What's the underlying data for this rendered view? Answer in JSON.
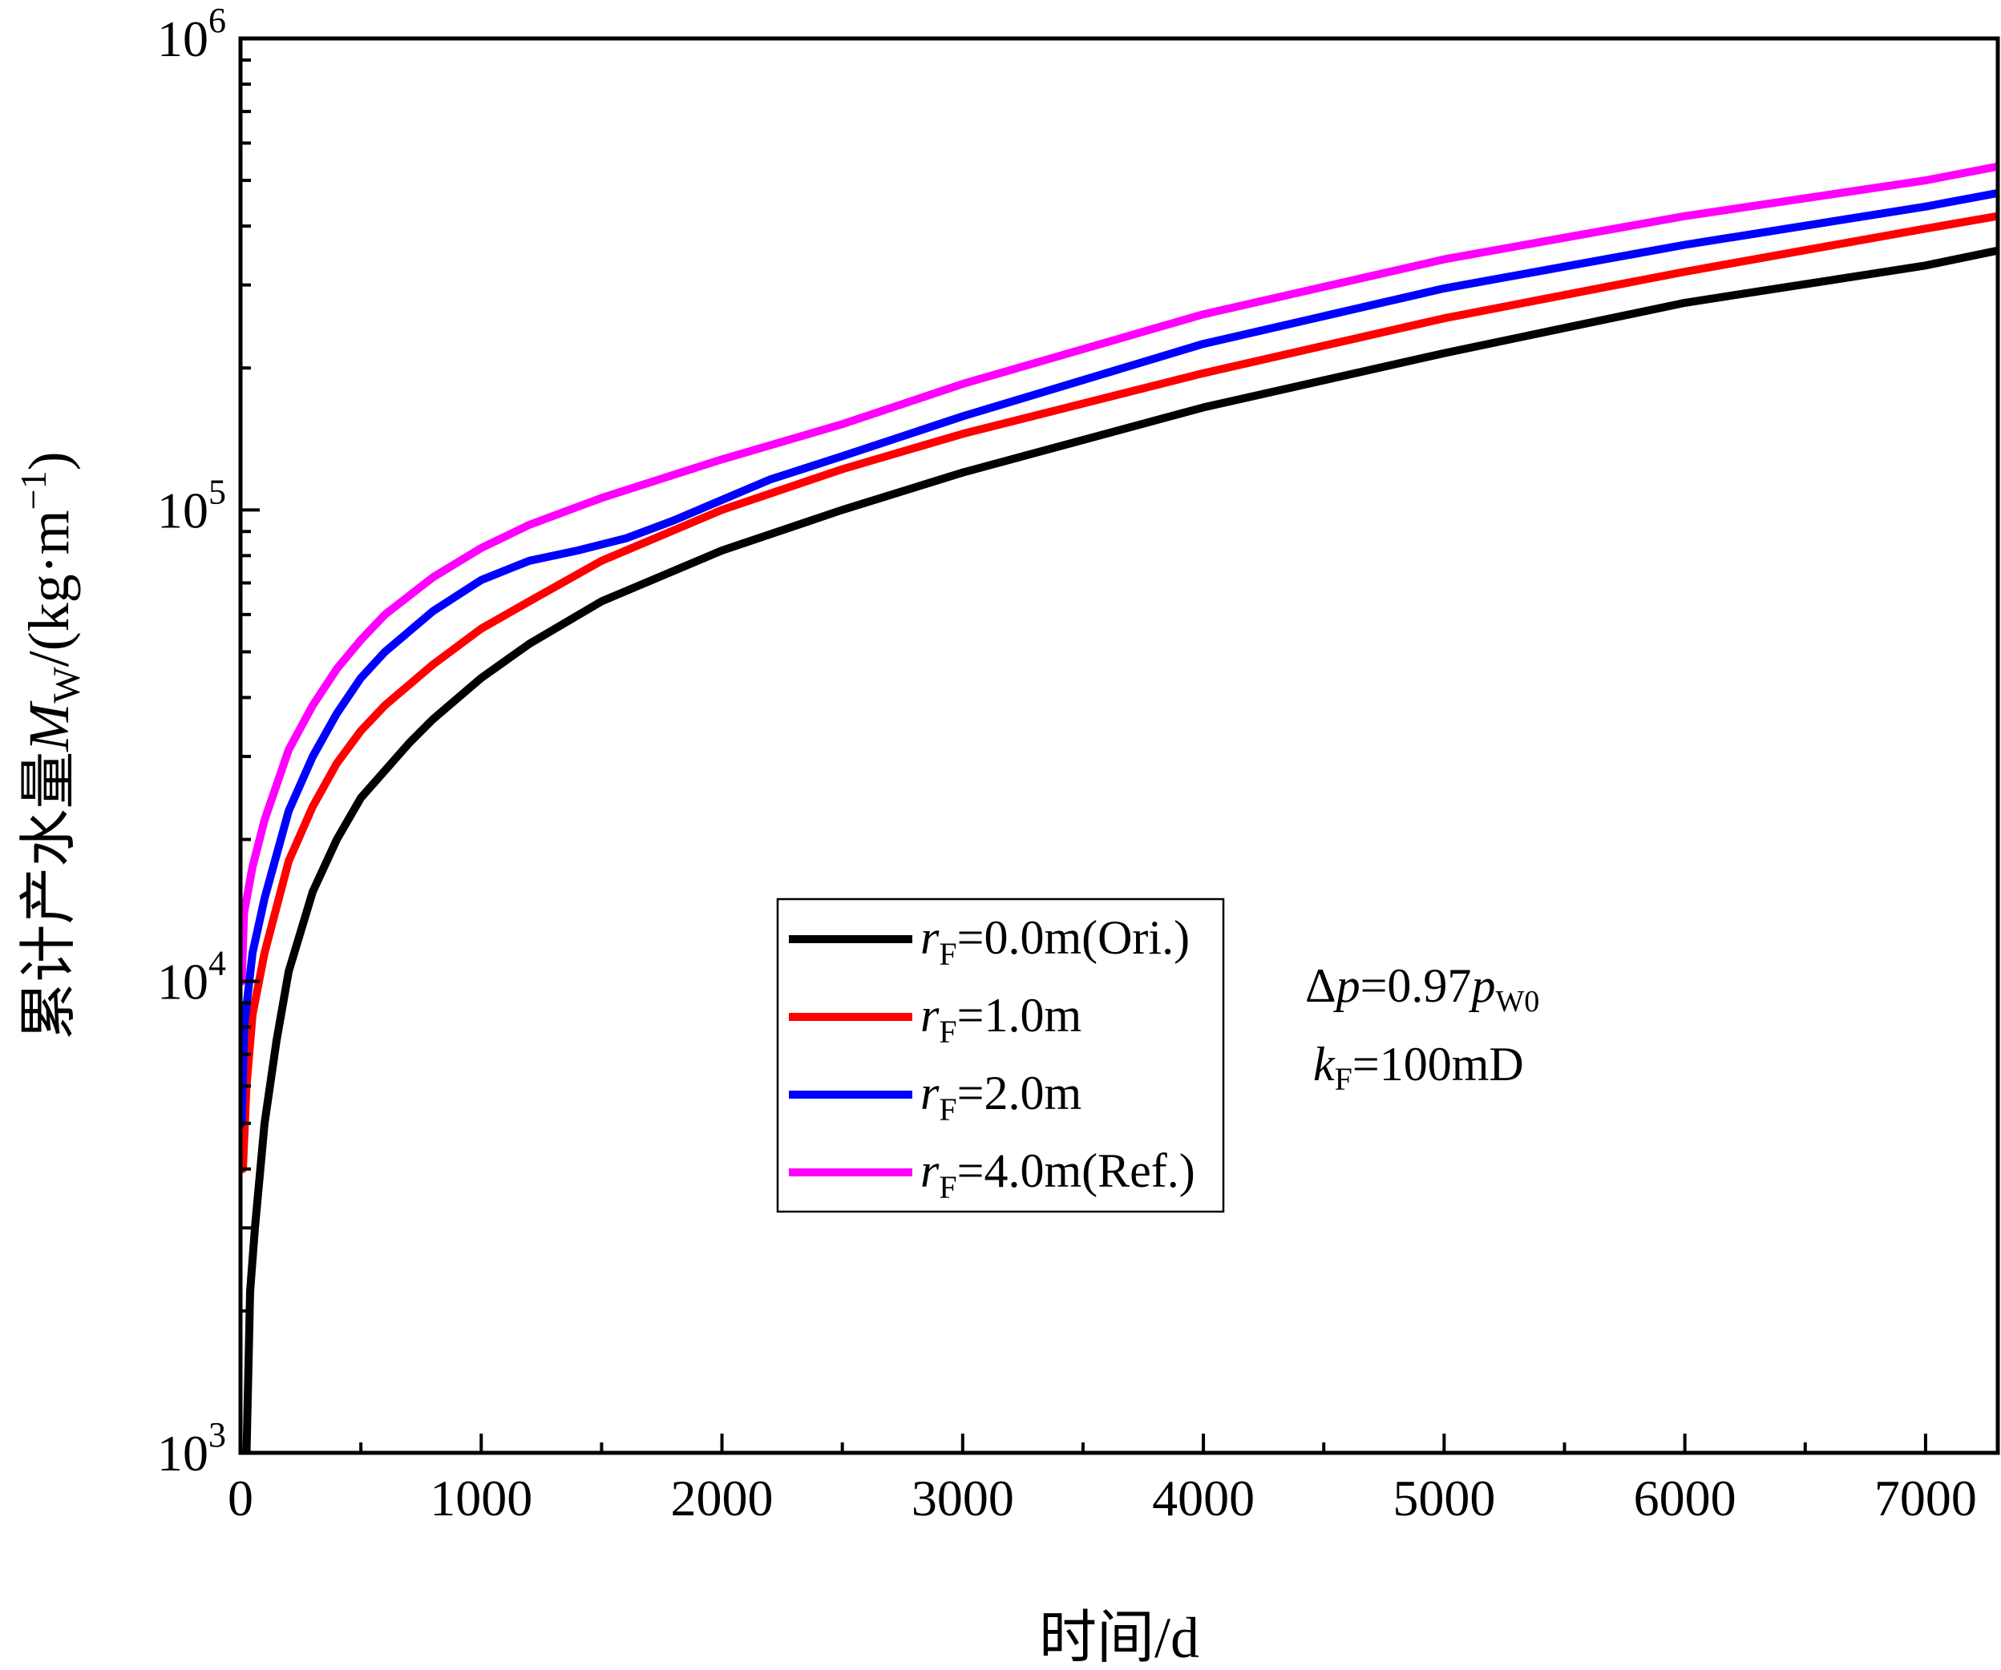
{
  "chart_data": {
    "type": "line",
    "xlabel": "时间/d",
    "ylabel": {
      "prefix": "累计产水量",
      "symbol": "M",
      "subscript": "W",
      "unit_open": "/(kg·m",
      "unit_exp": "−1",
      "unit_close": ")"
    },
    "x_axis": {
      "range": [
        0,
        7300
      ],
      "ticks": [
        0,
        1000,
        2000,
        3000,
        4000,
        5000,
        6000,
        7000
      ],
      "tick_labels": [
        "0",
        "1000",
        "2000",
        "3000",
        "4000",
        "5000",
        "6000",
        "7000"
      ]
    },
    "y_axis": {
      "scale": "log",
      "range": [
        1000,
        1000000
      ],
      "ticks": [
        1000,
        10000,
        100000,
        1000000
      ],
      "tick_labels": [
        {
          "base": "10",
          "exp": "3"
        },
        {
          "base": "10",
          "exp": "4"
        },
        {
          "base": "10",
          "exp": "5"
        },
        {
          "base": "10",
          "exp": "6"
        }
      ]
    },
    "legend": {
      "placement": "center",
      "entries": [
        {
          "sym": "r",
          "sub": "F",
          "rest": "=0.0m(Ori.)",
          "color": "#000000"
        },
        {
          "sym": "r",
          "sub": "F",
          "rest": "=1.0m",
          "color": "#ff0000"
        },
        {
          "sym": "r",
          "sub": "F",
          "rest": "=2.0m",
          "color": "#0000ff"
        },
        {
          "sym": "r",
          "sub": "F",
          "rest": "=4.0m(Ref.)",
          "color": "#ff00ff"
        }
      ]
    },
    "annotations": [
      {
        "pre": "Δ",
        "sym": "p",
        "mid": "=0.97",
        "sym2": "p",
        "sub2": "W0"
      },
      {
        "sym": "k",
        "sub": "F",
        "rest": "=100mD"
      }
    ],
    "series": [
      {
        "color": "#000000",
        "points": [
          [
            25,
            1000
          ],
          [
            40,
            2200
          ],
          [
            60,
            3000
          ],
          [
            100,
            5000
          ],
          [
            150,
            7500
          ],
          [
            200,
            10500
          ],
          [
            300,
            15500
          ],
          [
            400,
            20000
          ],
          [
            500,
            24500
          ],
          [
            600,
            28000
          ],
          [
            700,
            32000
          ],
          [
            800,
            36000
          ],
          [
            1000,
            44000
          ],
          [
            1200,
            52000
          ],
          [
            1500,
            64000
          ],
          [
            2000,
            82000
          ],
          [
            2500,
            100000
          ],
          [
            3000,
            120000
          ],
          [
            4000,
            165000
          ],
          [
            5000,
            215000
          ],
          [
            6000,
            275000
          ],
          [
            7000,
            330000
          ],
          [
            7300,
            355000
          ]
        ]
      },
      {
        "color": "#ff0000",
        "points": [
          [
            10,
            4000
          ],
          [
            25,
            6000
          ],
          [
            50,
            8500
          ],
          [
            100,
            11500
          ],
          [
            200,
            18000
          ],
          [
            300,
            23500
          ],
          [
            400,
            29000
          ],
          [
            500,
            34000
          ],
          [
            600,
            38500
          ],
          [
            800,
            47000
          ],
          [
            1000,
            56000
          ],
          [
            1200,
            64000
          ],
          [
            1500,
            78000
          ],
          [
            2000,
            100000
          ],
          [
            2500,
            122000
          ],
          [
            3000,
            145000
          ],
          [
            4000,
            195000
          ],
          [
            5000,
            255000
          ],
          [
            6000,
            320000
          ],
          [
            7000,
            395000
          ],
          [
            7300,
            420000
          ]
        ]
      },
      {
        "color": "#0000ff",
        "points": [
          [
            5,
            5000
          ],
          [
            15,
            8000
          ],
          [
            50,
            11500
          ],
          [
            100,
            15000
          ],
          [
            200,
            23000
          ],
          [
            300,
            30000
          ],
          [
            400,
            37000
          ],
          [
            500,
            44000
          ],
          [
            600,
            50000
          ],
          [
            800,
            61000
          ],
          [
            1000,
            71000
          ],
          [
            1200,
            78000
          ],
          [
            1400,
            82000
          ],
          [
            1600,
            87000
          ],
          [
            1800,
            95000
          ],
          [
            2000,
            105000
          ],
          [
            2200,
            116000
          ],
          [
            2500,
            130000
          ],
          [
            3000,
            158000
          ],
          [
            4000,
            225000
          ],
          [
            5000,
            295000
          ],
          [
            6000,
            365000
          ],
          [
            7000,
            440000
          ],
          [
            7300,
            470000
          ]
        ]
      },
      {
        "color": "#ff00ff",
        "points": [
          [
            5,
            10000
          ],
          [
            15,
            14000
          ],
          [
            50,
            17500
          ],
          [
            100,
            22000
          ],
          [
            200,
            31000
          ],
          [
            300,
            38500
          ],
          [
            400,
            46000
          ],
          [
            500,
            53000
          ],
          [
            600,
            60000
          ],
          [
            800,
            72000
          ],
          [
            1000,
            83000
          ],
          [
            1200,
            93000
          ],
          [
            1500,
            106000
          ],
          [
            2000,
            128000
          ],
          [
            2500,
            152000
          ],
          [
            3000,
            185000
          ],
          [
            4000,
            260000
          ],
          [
            5000,
            340000
          ],
          [
            6000,
            420000
          ],
          [
            7000,
            500000
          ],
          [
            7300,
            535000
          ]
        ]
      }
    ]
  }
}
